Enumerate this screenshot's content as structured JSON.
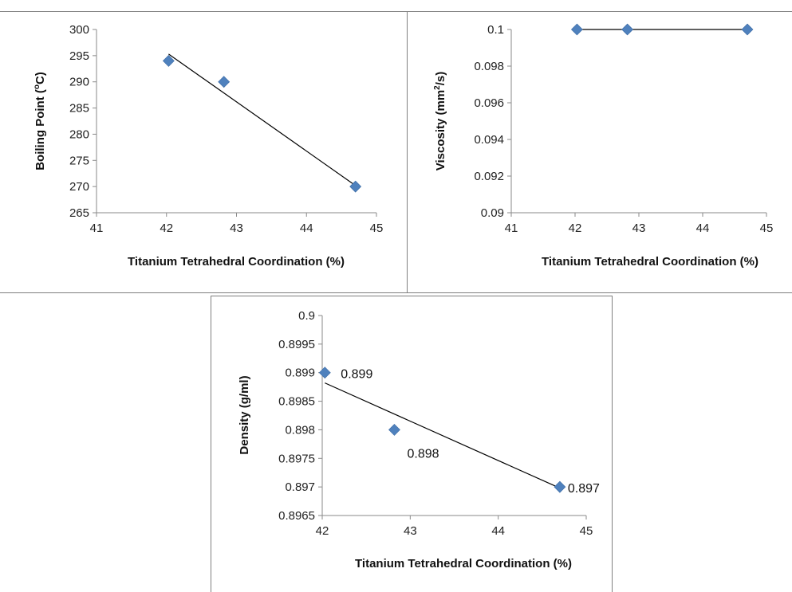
{
  "chart_data": [
    {
      "type": "scatter",
      "title": "",
      "xlabel": "Titanium  Tetrahedral Coordination  (%)",
      "ylabel_main": "Boiling  Point  (",
      "ylabel_sup": "o",
      "ylabel_end": "C)",
      "xlim": [
        41,
        45
      ],
      "ylim": [
        265,
        300
      ],
      "x_ticks": [
        "41",
        "42",
        "43",
        "44",
        "45"
      ],
      "y_ticks": [
        "265",
        "270",
        "275",
        "280",
        "285",
        "290",
        "295",
        "300"
      ],
      "series": [
        {
          "x": [
            42.03,
            42.82,
            44.7
          ],
          "y": [
            294,
            290,
            270
          ]
        }
      ],
      "trendline": {
        "type": "linear",
        "from": [
          42.03,
          295.3
        ],
        "to": [
          44.7,
          270.2
        ]
      },
      "point_labels": [],
      "grid": false
    },
    {
      "type": "scatter",
      "title": "",
      "xlabel": "Titanium  Tetrahedral Coordination  (%)",
      "ylabel_main": "Viscosity  (mm",
      "ylabel_sup": "2",
      "ylabel_end": "/s)",
      "xlim": [
        41,
        45
      ],
      "ylim": [
        0.09,
        0.1
      ],
      "x_ticks": [
        "41",
        "42",
        "43",
        "44",
        "45"
      ],
      "y_ticks": [
        "0.09",
        "0.092",
        "0.094",
        "0.096",
        "0.098",
        "0.1"
      ],
      "series": [
        {
          "x": [
            42.03,
            42.82,
            44.7
          ],
          "y": [
            0.1,
            0.1,
            0.1
          ]
        }
      ],
      "trendline": {
        "type": "linear",
        "from": [
          42.03,
          0.1
        ],
        "to": [
          44.7,
          0.1
        ]
      },
      "point_labels": [],
      "grid": false
    },
    {
      "type": "scatter",
      "title": "",
      "xlabel": "Titanium  Tetrahedral Coordination  (%)",
      "ylabel_main": "Density  (g/ml)",
      "ylabel_sup": "",
      "ylabel_end": "",
      "xlim": [
        42,
        45
      ],
      "ylim": [
        0.8965,
        0.9
      ],
      "x_ticks": [
        "42",
        "43",
        "44",
        "45"
      ],
      "y_ticks": [
        "0.8965",
        "0.897",
        "0.8975",
        "0.898",
        "0.8985",
        "0.899",
        "0.8995",
        "0.9"
      ],
      "series": [
        {
          "x": [
            42.03,
            42.82,
            44.7
          ],
          "y": [
            0.899,
            0.898,
            0.897
          ]
        }
      ],
      "trendline": {
        "type": "linear",
        "from": [
          42.03,
          0.89882
        ],
        "to": [
          44.7,
          0.89698
        ]
      },
      "point_labels": [
        "0.899",
        "0.898",
        "0.897"
      ],
      "grid": false
    }
  ]
}
